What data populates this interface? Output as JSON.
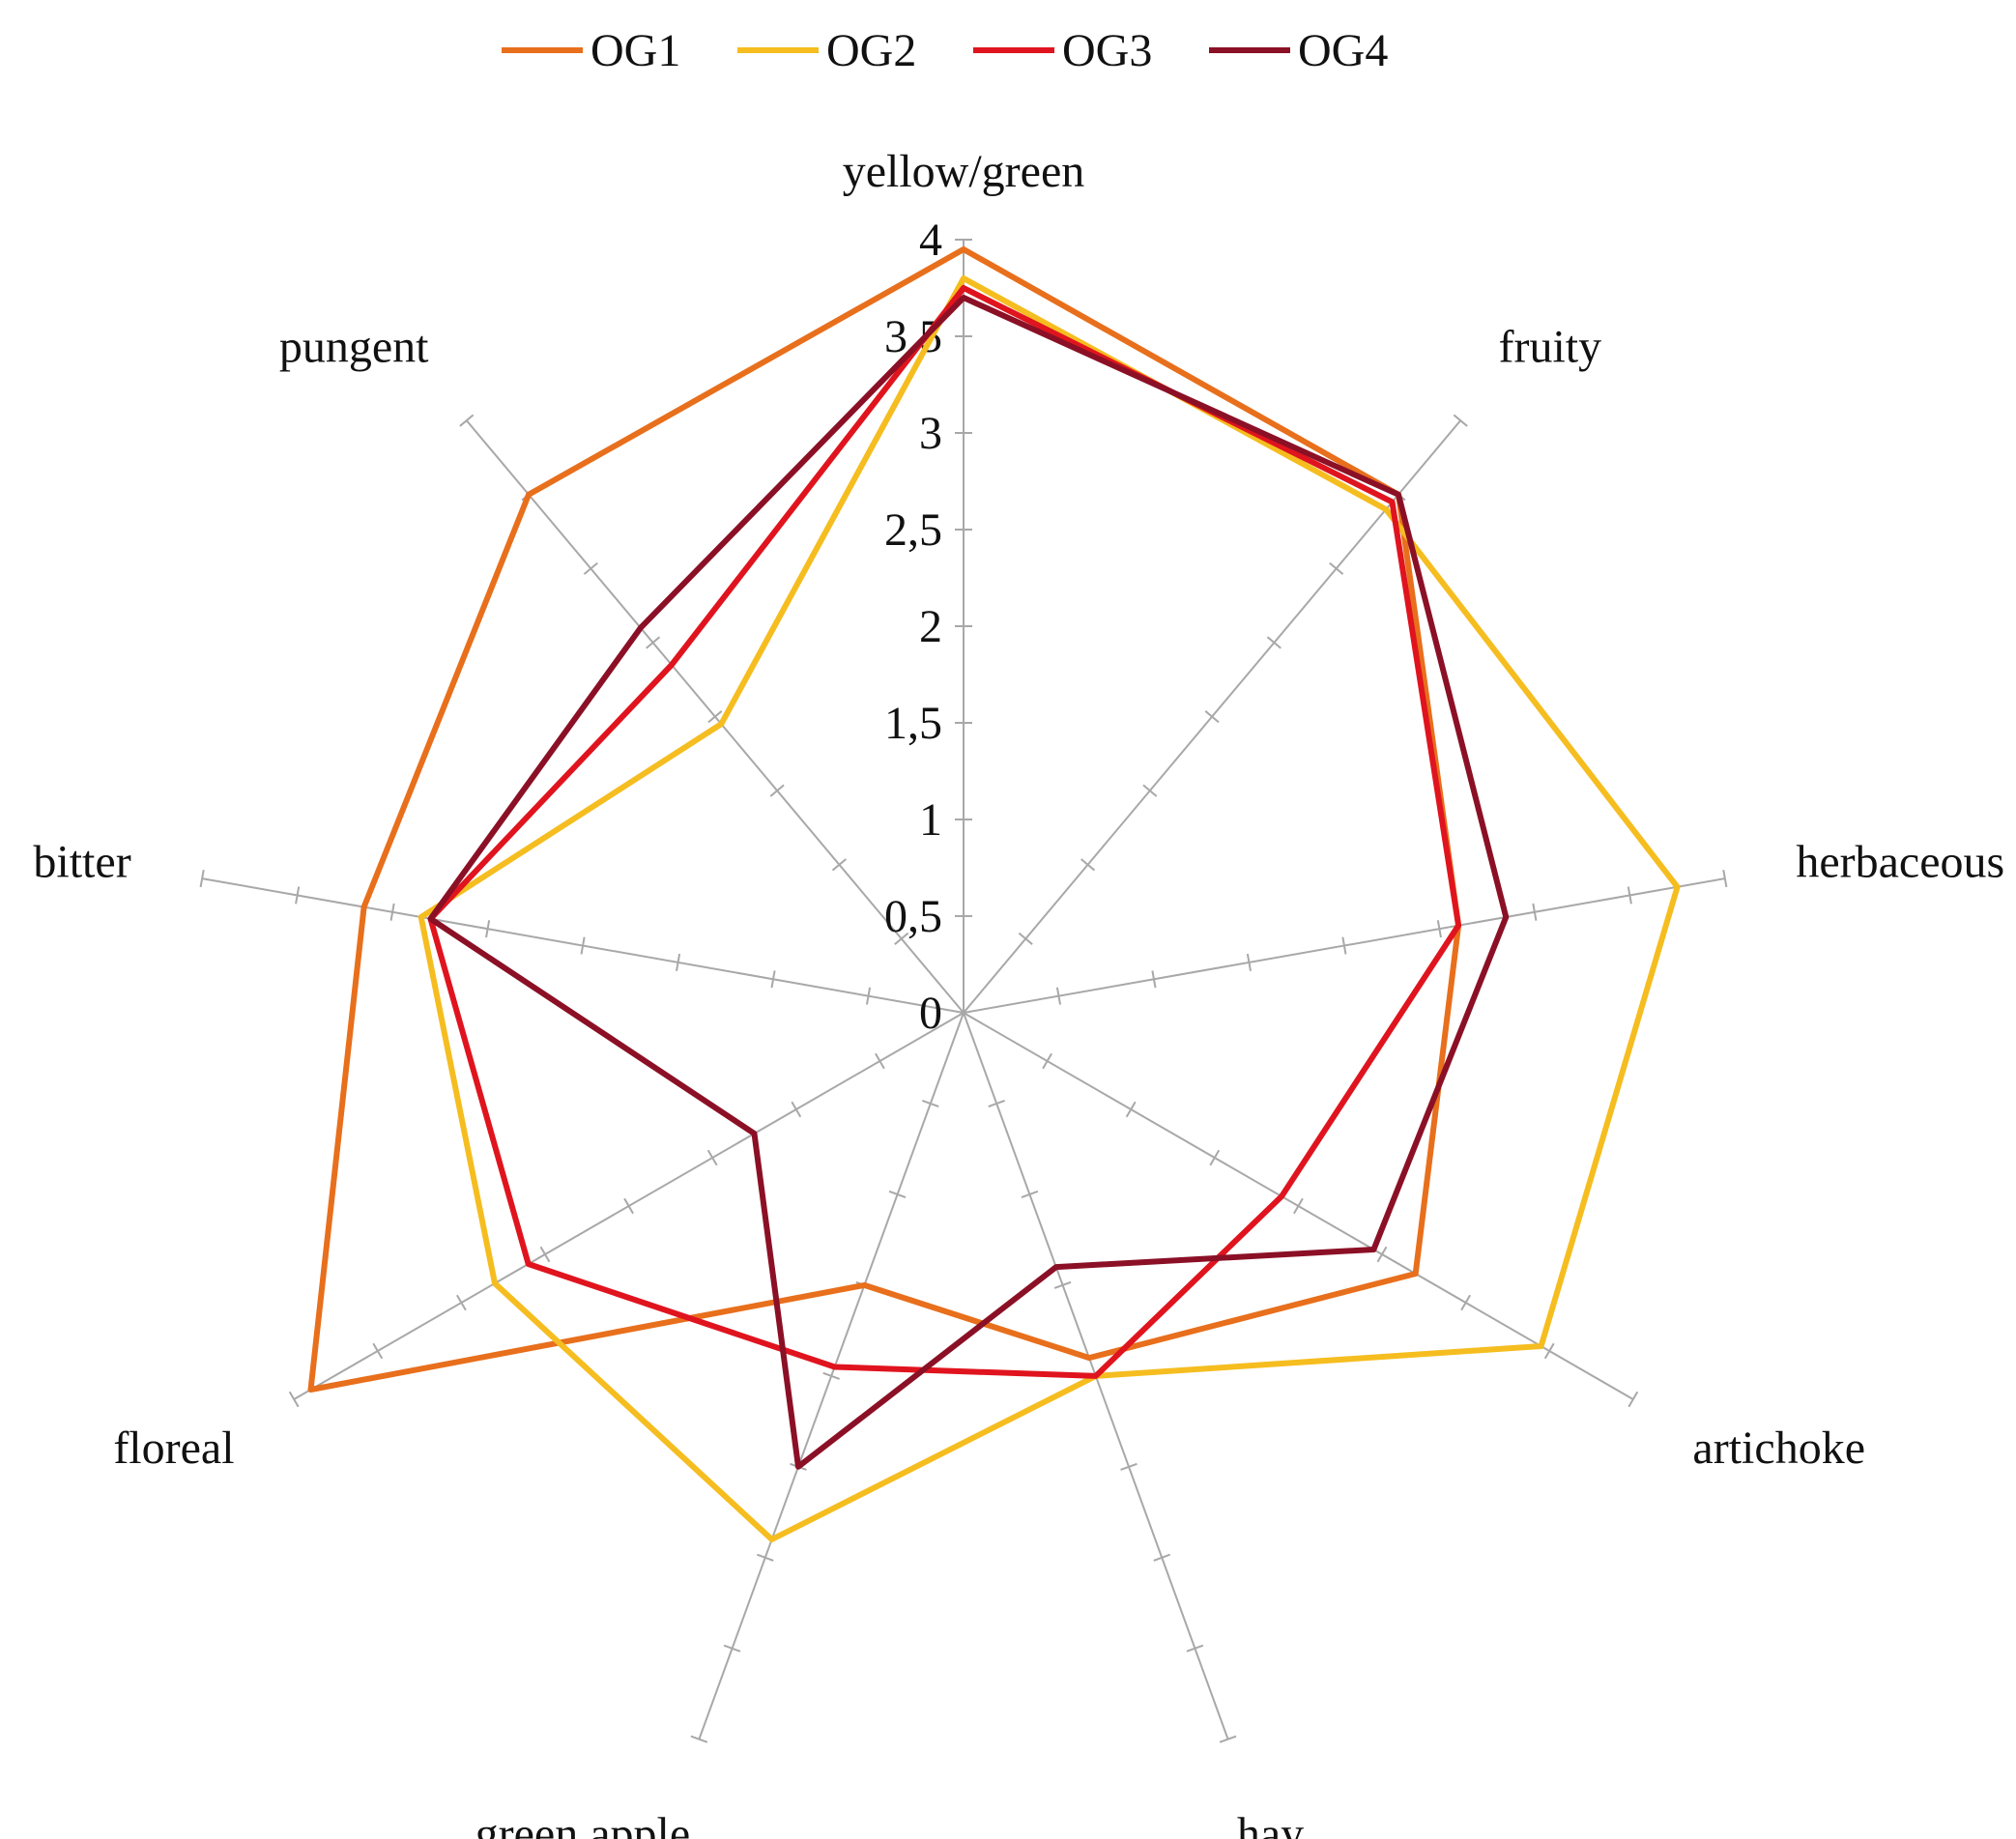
{
  "chart_data": {
    "type": "radar",
    "title": "",
    "axes": [
      "yellow/green",
      "fruity",
      "herbaceous",
      "artichoke",
      "hay",
      "green apple",
      "floreal",
      "bitter",
      "pungent"
    ],
    "tick_labels": [
      "0",
      "0,5",
      "1",
      "1,5",
      "2",
      "2,5",
      "3",
      "3,5",
      "4"
    ],
    "rlim": [
      0,
      4
    ],
    "grid": true,
    "legend_position": "top",
    "series": [
      {
        "name": "OG1",
        "color": "#E86F1C",
        "values": [
          3.95,
          3.5,
          2.6,
          2.7,
          1.9,
          1.5,
          3.9,
          3.15,
          3.5
        ]
      },
      {
        "name": "OG2",
        "color": "#F5BD1F",
        "values": [
          3.8,
          3.4,
          3.75,
          3.45,
          2.0,
          2.9,
          2.8,
          2.85,
          1.95
        ]
      },
      {
        "name": "OG3",
        "color": "#E0141E",
        "values": [
          3.75,
          3.45,
          2.6,
          1.9,
          2.0,
          1.95,
          2.6,
          2.8,
          2.35
        ]
      },
      {
        "name": "OG4",
        "color": "#8B1026",
        "values": [
          3.7,
          3.5,
          2.85,
          2.45,
          1.4,
          2.5,
          1.25,
          2.8,
          2.6
        ]
      }
    ]
  }
}
